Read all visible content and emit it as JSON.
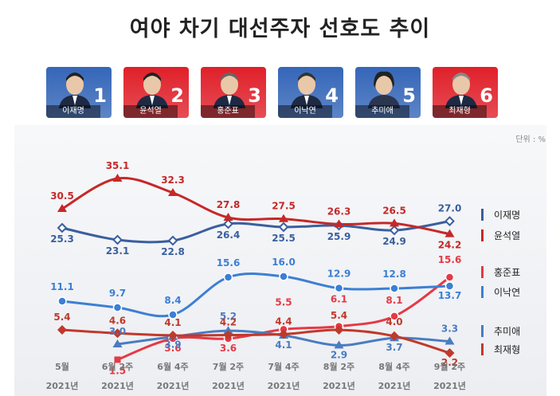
{
  "title": "여야 차기 대선주자 선호도 추이",
  "unit_label": "단위 : %",
  "candidates": [
    {
      "name": "이재명",
      "number": "1",
      "color": "#3566b8"
    },
    {
      "name": "윤석열",
      "number": "2",
      "color": "#e0202a"
    },
    {
      "name": "홍준표",
      "number": "3",
      "color": "#e0202a"
    },
    {
      "name": "이낙연",
      "number": "4",
      "color": "#3566b8"
    },
    {
      "name": "추미애",
      "number": "5",
      "color": "#3566b8"
    },
    {
      "name": "최재형",
      "number": "6",
      "color": "#e0202a"
    }
  ],
  "chart_data": {
    "type": "line",
    "x": [
      "5월",
      "6월 2주",
      "6월 4주",
      "7월 2주",
      "7월 4주",
      "8월 2주",
      "8월 4주",
      "9월 2주"
    ],
    "x_sublabels": [
      "2021년",
      "2021년",
      "2021년",
      "2021년",
      "2021년",
      "2021년",
      "2021년",
      "2021년"
    ],
    "series": [
      {
        "name": "이재명",
        "color": "#3a5f9e",
        "values": [
          25.3,
          23.1,
          22.8,
          26.4,
          25.5,
          25.9,
          24.9,
          27.0
        ],
        "labels": [
          "25.3",
          "23.1",
          "22.8",
          "26.4",
          "25.5",
          "25.9",
          "24.9",
          "27.0"
        ],
        "marker": "diamond-open"
      },
      {
        "name": "윤석열",
        "color": "#c62828",
        "values": [
          30.5,
          35.1,
          32.3,
          27.8,
          27.5,
          26.3,
          26.5,
          24.2
        ],
        "labels": [
          "30.5",
          "35.1",
          "32.3",
          "27.8",
          "27.5",
          "26.3",
          "26.5",
          "24.2"
        ],
        "marker": "triangle"
      },
      {
        "name": "홍준표",
        "color": "#e53945",
        "values": [
          null,
          1.5,
          3.6,
          3.6,
          5.5,
          6.1,
          8.1,
          15.6
        ],
        "labels": [
          null,
          "1.5",
          "3.6",
          "3.6",
          "5.5",
          "6.1",
          "8.1",
          "15.6"
        ],
        "marker": "circle"
      },
      {
        "name": "이낙연",
        "color": "#3c7fd4",
        "values": [
          11.1,
          9.7,
          8.4,
          15.6,
          16.0,
          12.9,
          12.8,
          13.7
        ],
        "labels": [
          "11.1",
          "9.7",
          "8.4",
          "15.6",
          "16.0",
          "12.9",
          "12.8",
          "13.7"
        ],
        "marker": "circle"
      },
      {
        "name": "추미애",
        "color": "#4a7cc0",
        "values": [
          null,
          3.0,
          3.9,
          5.2,
          4.1,
          2.9,
          3.7,
          3.3
        ],
        "labels": [
          null,
          "3.0",
          "3.9",
          "5.2",
          "4.1",
          "2.9",
          "3.7",
          "3.3"
        ],
        "marker": "triangle"
      },
      {
        "name": "최재형",
        "color": "#c0392b",
        "values": [
          5.4,
          4.6,
          4.1,
          4.2,
          4.4,
          5.4,
          4.0,
          2.2
        ],
        "labels": [
          "5.4",
          "4.6",
          "4.1",
          "4.2",
          "4.4",
          "5.4",
          "4.0",
          "2.2"
        ],
        "marker": "diamond"
      }
    ],
    "legend": [
      "이재명",
      "윤석열",
      "홍준표",
      "이낙연",
      "추미애",
      "최재형"
    ],
    "legend_position": "right",
    "grid": false
  }
}
